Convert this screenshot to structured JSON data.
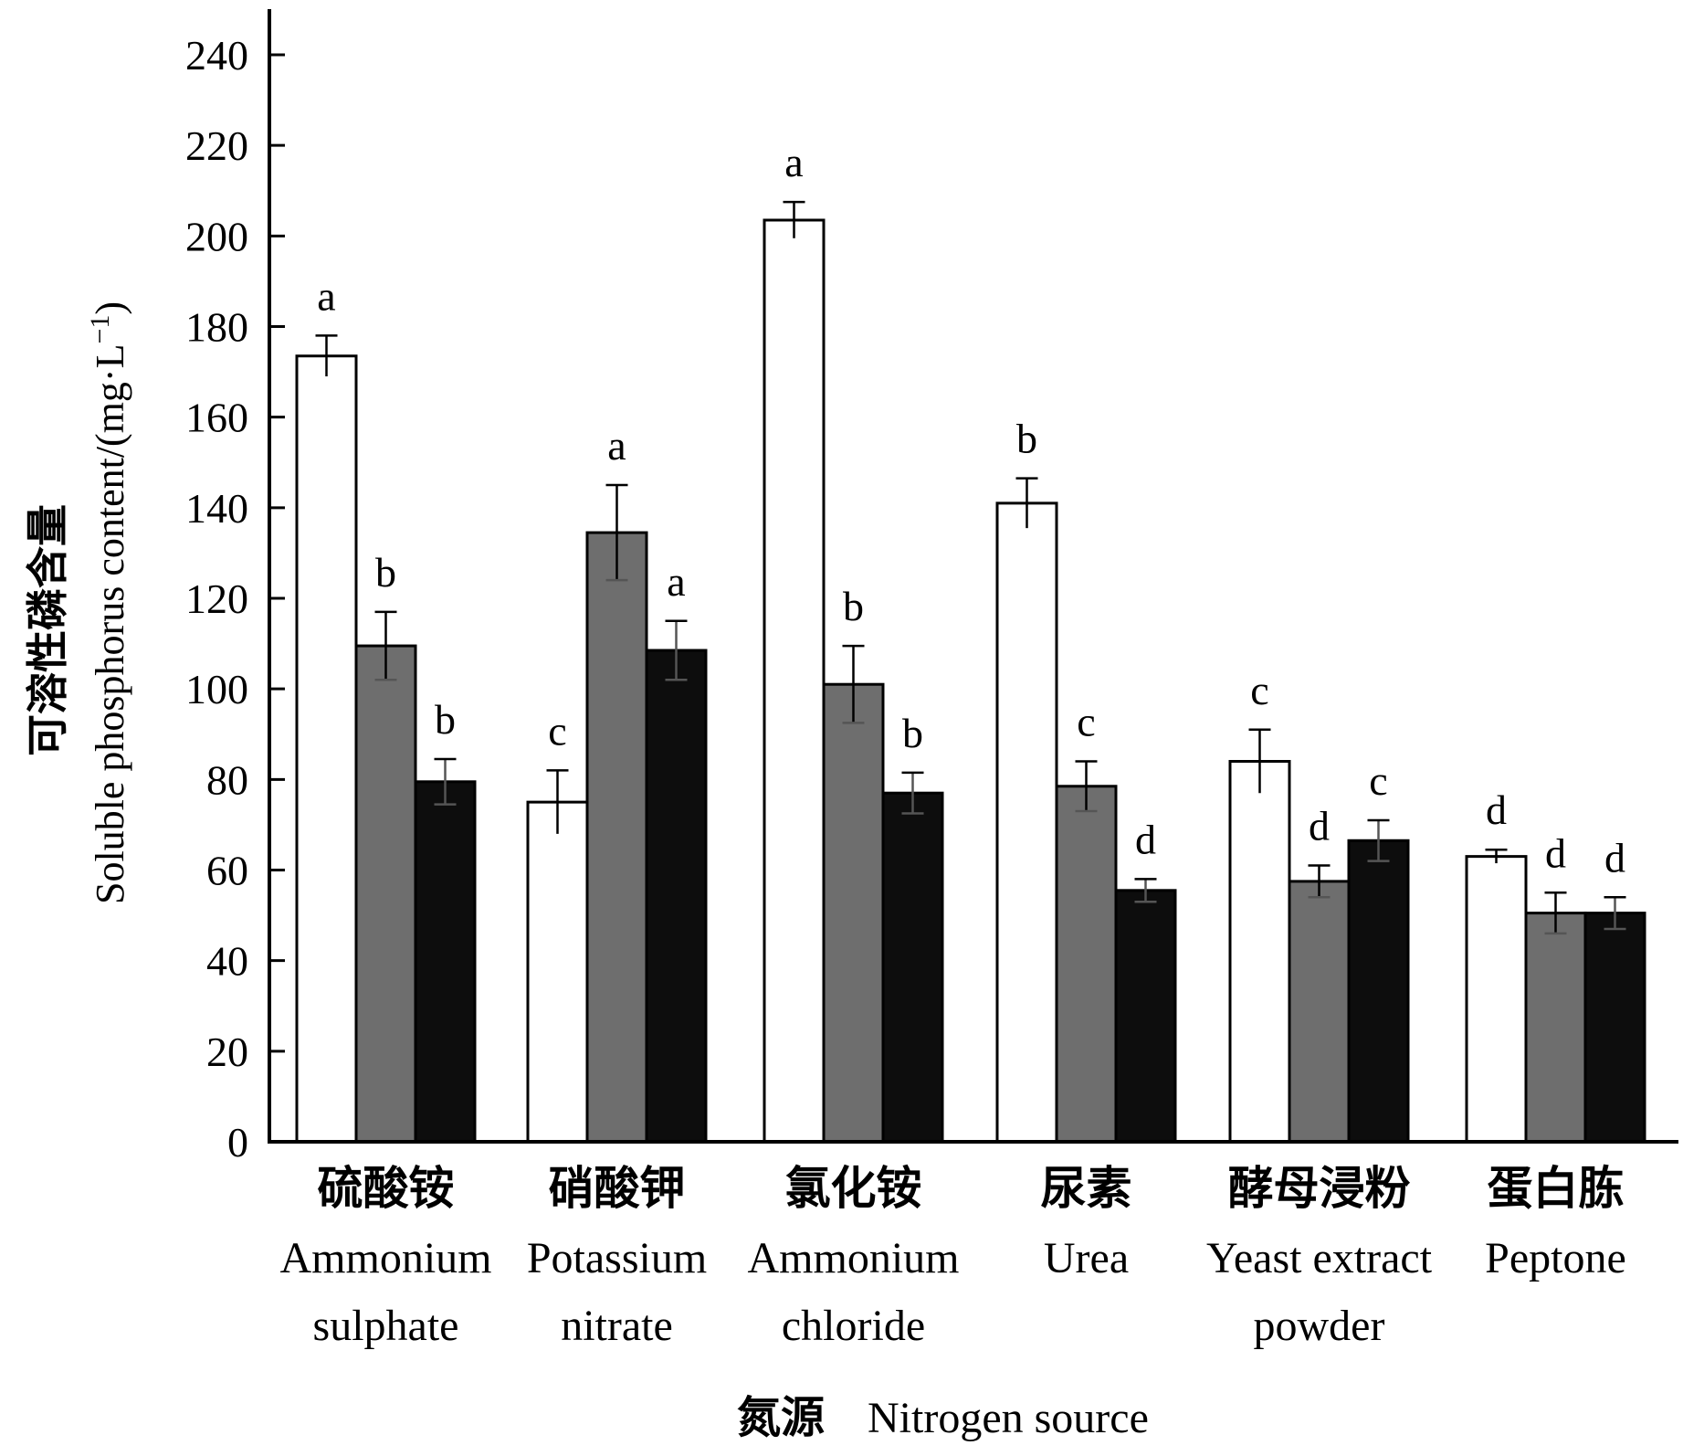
{
  "chart_data": {
    "type": "bar",
    "ylabel": {
      "cn": "可溶性磷含量",
      "en": "Soluble phosphorus content/(mg·L",
      "sup": "−1",
      "close": ")"
    },
    "xlabel": {
      "cn": "氮源",
      "en": "Nitrogen source"
    },
    "ylim": [
      0,
      250
    ],
    "yticks": [
      0,
      20,
      40,
      60,
      80,
      100,
      120,
      140,
      160,
      180,
      200,
      220,
      240
    ],
    "categories": [
      {
        "cn": "硫酸铵",
        "en": [
          "Ammonium",
          "sulphate"
        ]
      },
      {
        "cn": "硝酸钾",
        "en": [
          "Potassium",
          "nitrate"
        ]
      },
      {
        "cn": "氯化铵",
        "en": [
          "Ammonium",
          "chloride"
        ]
      },
      {
        "cn": "尿素",
        "en": [
          "Urea"
        ]
      },
      {
        "cn": "酵母浸粉",
        "en": [
          "Yeast extract",
          "powder"
        ]
      },
      {
        "cn": "蛋白胨",
        "en": [
          "Peptone"
        ]
      }
    ],
    "series": [
      {
        "color": "#ffffff",
        "values": [
          173.5,
          75,
          203.5,
          141,
          84,
          63
        ],
        "errors": [
          4.5,
          7,
          4,
          5.5,
          7,
          1.5
        ],
        "labels": [
          "a",
          "c",
          "a",
          "b",
          "c",
          "d"
        ]
      },
      {
        "color": "#6e6e6e",
        "values": [
          109.5,
          134.5,
          101,
          78.5,
          57.5,
          50.5
        ],
        "errors": [
          7.5,
          10.5,
          8.5,
          5.5,
          3.5,
          4.5
        ],
        "labels": [
          "b",
          "a",
          "b",
          "c",
          "d",
          "d"
        ]
      },
      {
        "color": "#0d0d0d",
        "values": [
          79.5,
          108.5,
          77,
          55.5,
          66.5,
          50.5
        ],
        "errors": [
          5,
          6.5,
          4.5,
          2.5,
          4.5,
          3.5
        ],
        "labels": [
          "b",
          "a",
          "b",
          "d",
          "c",
          "d"
        ]
      }
    ]
  }
}
